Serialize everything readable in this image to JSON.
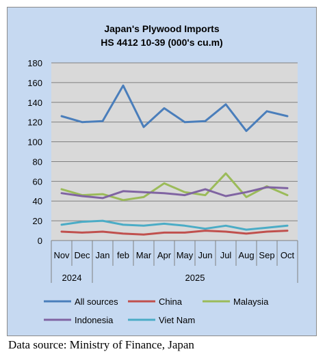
{
  "chart_data": {
    "type": "line",
    "title": "Japan's Plywood Imports",
    "subtitle": "HS 4412 10-39  (000's cu.m)",
    "months": [
      "Nov",
      "Dec",
      "Jan",
      "feb",
      "Mar",
      "Apr",
      "May",
      "Jun",
      "Jul",
      "Aug",
      "Sep",
      "Oct"
    ],
    "years": [
      {
        "label": "2024",
        "span": 2
      },
      {
        "label": "2025",
        "span": 10
      }
    ],
    "ylim": [
      0,
      180
    ],
    "yticks": [
      0,
      20,
      40,
      60,
      80,
      100,
      120,
      140,
      160,
      180
    ],
    "grid": true,
    "legend_position": "bottom",
    "series": [
      {
        "name": "All sources",
        "color": "#4a7ebb",
        "values": [
          126,
          120,
          121,
          157,
          115,
          134,
          120,
          121,
          138,
          111,
          131,
          126
        ]
      },
      {
        "name": "China",
        "color": "#c0504d",
        "values": [
          9,
          8,
          9,
          7,
          6,
          8,
          8,
          10,
          9,
          7,
          9,
          10
        ]
      },
      {
        "name": "Malaysia",
        "color": "#9bbb59",
        "values": [
          52,
          46,
          47,
          41,
          44,
          58,
          49,
          46,
          68,
          44,
          55,
          46
        ]
      },
      {
        "name": "Indonesia",
        "color": "#8064a2",
        "values": [
          48,
          45,
          43,
          50,
          49,
          48,
          46,
          52,
          45,
          49,
          54,
          53
        ]
      },
      {
        "name": "Viet Nam",
        "color": "#4bacc6",
        "values": [
          16,
          19,
          20,
          16,
          15,
          17,
          15,
          12,
          15,
          11,
          13,
          15
        ]
      }
    ]
  },
  "source_note": "Data source: Ministry of Finance, Japan"
}
